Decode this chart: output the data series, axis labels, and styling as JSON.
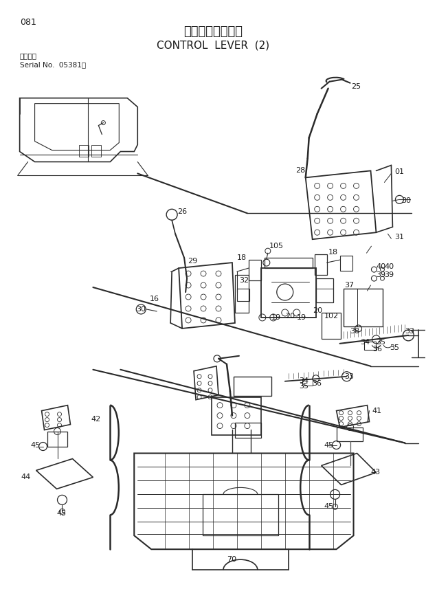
{
  "bg_color": "#ffffff",
  "line_color": "#2a2a2a",
  "text_color": "#1a1a1a",
  "page_number": "081",
  "title_ja": "操作レバー（２）",
  "title_en": "CONTROL  LEVER  (2)",
  "serial_line1": "適用号機",
  "serial_line2": "Serial No.  05381～",
  "figsize": [
    6.2,
    8.73
  ],
  "dpi": 100
}
